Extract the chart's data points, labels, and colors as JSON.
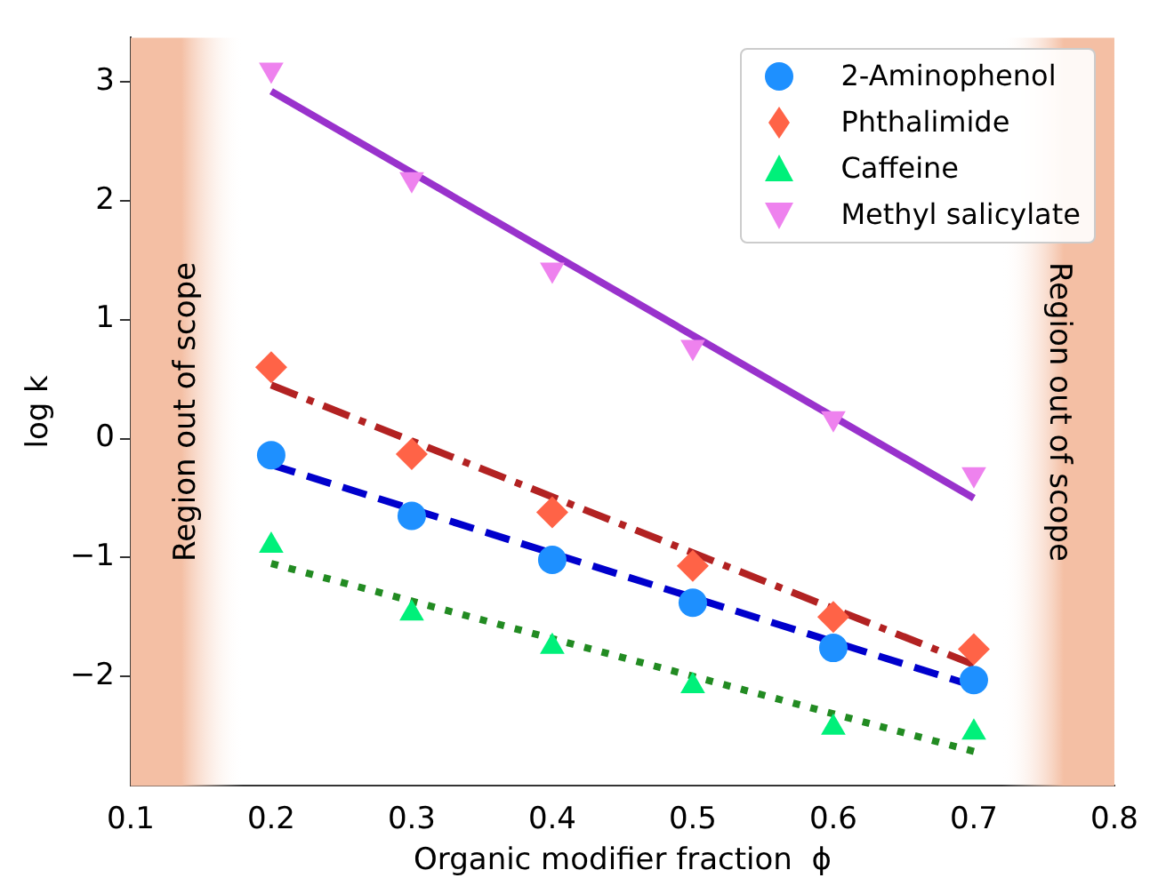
{
  "chart_data": {
    "type": "scatter",
    "xlabel": "Organic modifier fraction  ϕ",
    "ylabel": "log k",
    "xlim": [
      0.1,
      0.8
    ],
    "xticks": [
      {
        "value": 0.1,
        "label": "0.1"
      },
      {
        "value": 0.2,
        "label": "0.2"
      },
      {
        "value": 0.3,
        "label": "0.3"
      },
      {
        "value": 0.4,
        "label": "0.4"
      },
      {
        "value": 0.5,
        "label": "0.5"
      },
      {
        "value": 0.6,
        "label": "0.6"
      },
      {
        "value": 0.7,
        "label": "0.7"
      },
      {
        "value": 0.8,
        "label": "0.8"
      }
    ],
    "ylim": [
      -2.92,
      3.37
    ],
    "yticks": [
      {
        "value": -2,
        "label": "−2"
      },
      {
        "value": -1,
        "label": "−1"
      },
      0,
      1,
      2,
      3
    ],
    "grid": false,
    "legend": "top right",
    "series": [
      {
        "name": "2-Aminophenol",
        "type": "scatter",
        "marker": "circle",
        "color": "#1e90ff",
        "x": [
          0.2,
          0.3,
          0.4,
          0.5,
          0.6,
          0.7
        ],
        "values": [
          -0.14,
          -0.65,
          -1.02,
          -1.38,
          -1.76,
          -2.03
        ]
      },
      {
        "name": "Phthalimide",
        "type": "scatter",
        "marker": "diamond",
        "color": "#ff6347",
        "x": [
          0.2,
          0.3,
          0.4,
          0.5,
          0.6,
          0.7
        ],
        "values": [
          0.6,
          -0.13,
          -0.62,
          -1.07,
          -1.5,
          -1.77
        ]
      },
      {
        "name": "Caffeine",
        "type": "scatter",
        "marker": "triangle",
        "color": "#00f07a",
        "x": [
          0.2,
          0.3,
          0.4,
          0.5,
          0.6,
          0.7
        ],
        "values": [
          -0.9,
          -1.47,
          -1.75,
          -2.08,
          -2.43,
          -2.47
        ]
      },
      {
        "name": "Methyl salicylate",
        "type": "scatter",
        "marker": "triangle-down",
        "color": "#ee82ee",
        "x": [
          0.2,
          0.3,
          0.4,
          0.5,
          0.6,
          0.7
        ],
        "values": [
          3.1,
          2.18,
          1.42,
          0.77,
          0.17,
          -0.3
        ]
      },
      {
        "type": "line",
        "line_style": "dashed",
        "color": "#0000cc",
        "x": [
          0.2,
          0.7
        ],
        "values": [
          -0.22,
          -2.08
        ]
      },
      {
        "type": "line",
        "line_style": "dashdot",
        "color": "#b22222",
        "x": [
          0.2,
          0.7
        ],
        "values": [
          0.45,
          -1.9
        ]
      },
      {
        "type": "line",
        "line_style": "dotted",
        "color": "#228b22",
        "x": [
          0.2,
          0.7
        ],
        "values": [
          -1.05,
          -2.63
        ]
      },
      {
        "type": "line",
        "line_style": "solid",
        "color": "#9932cc",
        "x": [
          0.2,
          0.7
        ],
        "values": [
          2.92,
          -0.5
        ]
      }
    ],
    "bands": [
      {
        "axis": "x",
        "from": 0.1,
        "to": 0.18,
        "label": "Region out of scope",
        "color": "#f4bfa4"
      },
      {
        "axis": "x",
        "from": 0.72,
        "to": 0.8,
        "label": "Region out of scope",
        "color": "#f4bfa4"
      }
    ]
  }
}
